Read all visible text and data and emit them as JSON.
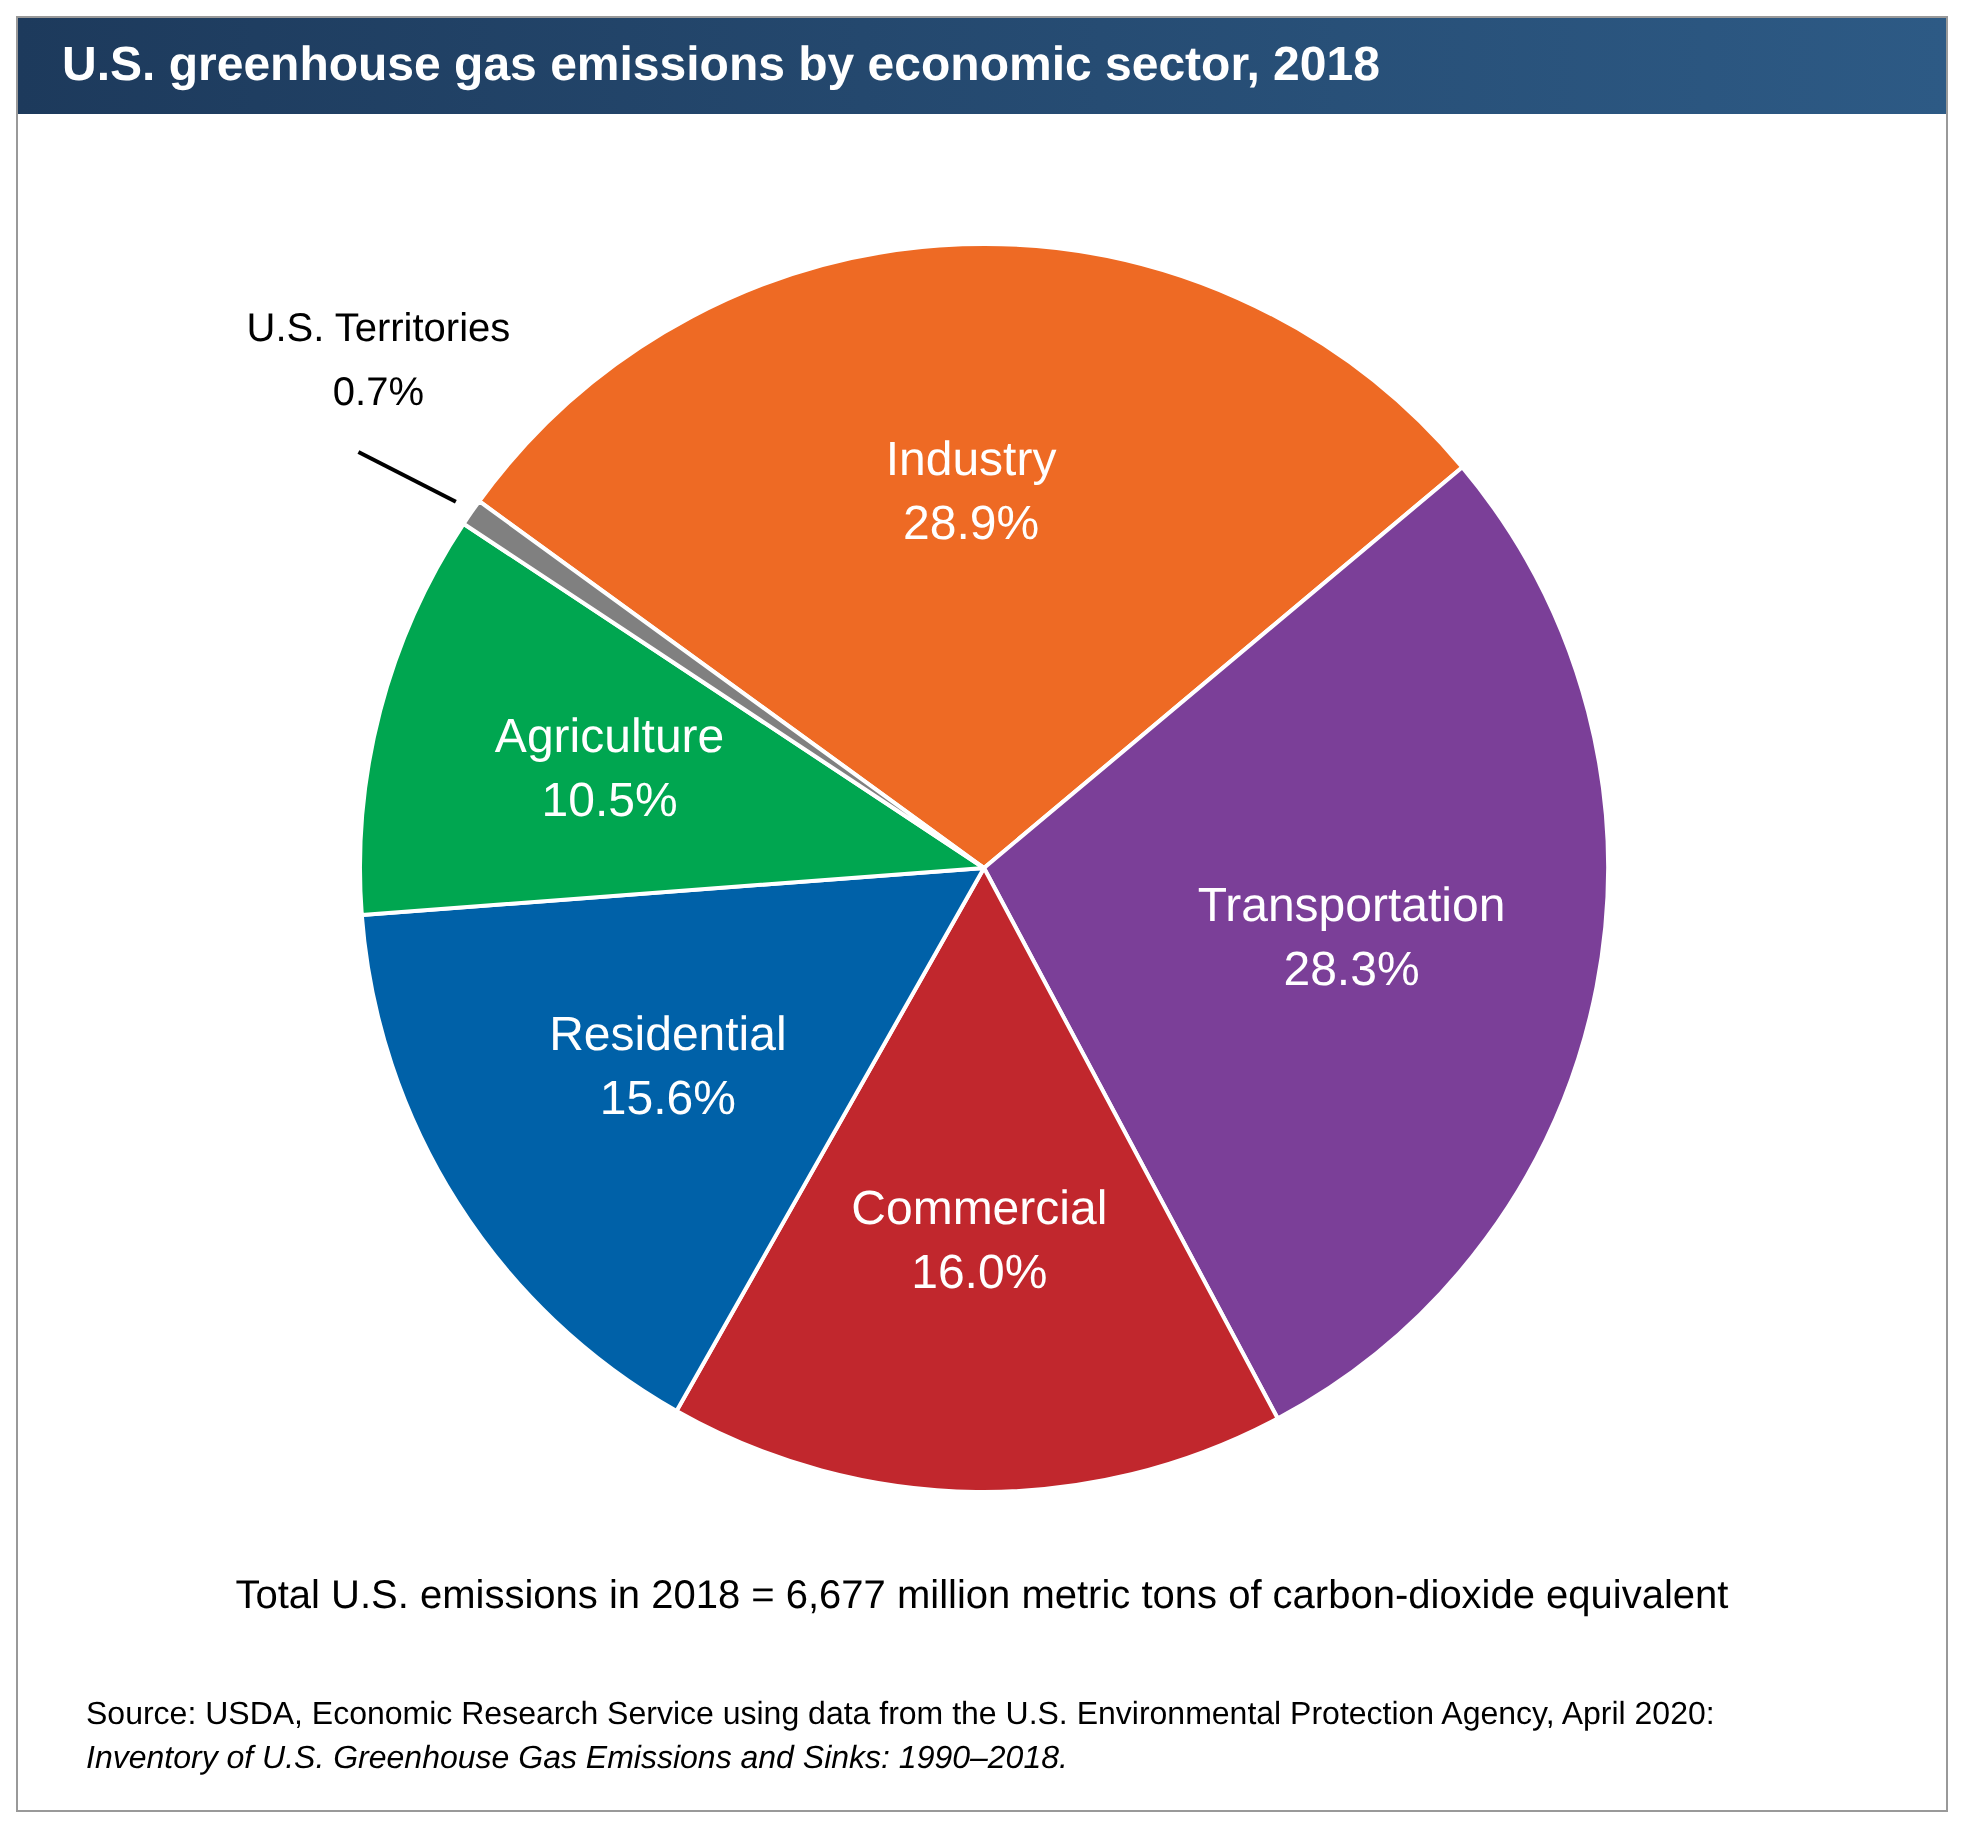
{
  "chart_data": {
    "type": "pie",
    "title": "U.S. greenhouse gas emissions by economic sector, 2018",
    "categories": [
      "Industry",
      "Transportation",
      "Commercial",
      "Residential",
      "Agriculture",
      "U.S. Territories"
    ],
    "values": [
      28.9,
      28.3,
      16.0,
      15.6,
      10.5,
      0.7
    ],
    "value_labels": [
      "28.9%",
      "28.3%",
      "16.0%",
      "15.6%",
      "10.5%",
      "0.7%"
    ],
    "colors": [
      "#ee6a24",
      "#7b3f98",
      "#c1272d",
      "#0061a8",
      "#00a650",
      "#808080"
    ],
    "legend": false,
    "annotations": [
      "Total U.S. emissions in 2018 = 6,677 million metric tons of carbon-dioxide equivalent",
      "Source: USDA, Economic Research Service using data from the U.S. Environmental Protection Agency, April 2020:",
      "Inventory of U.S. Greenhouse Gas Emissions and Sinks: 1990–2018."
    ]
  }
}
